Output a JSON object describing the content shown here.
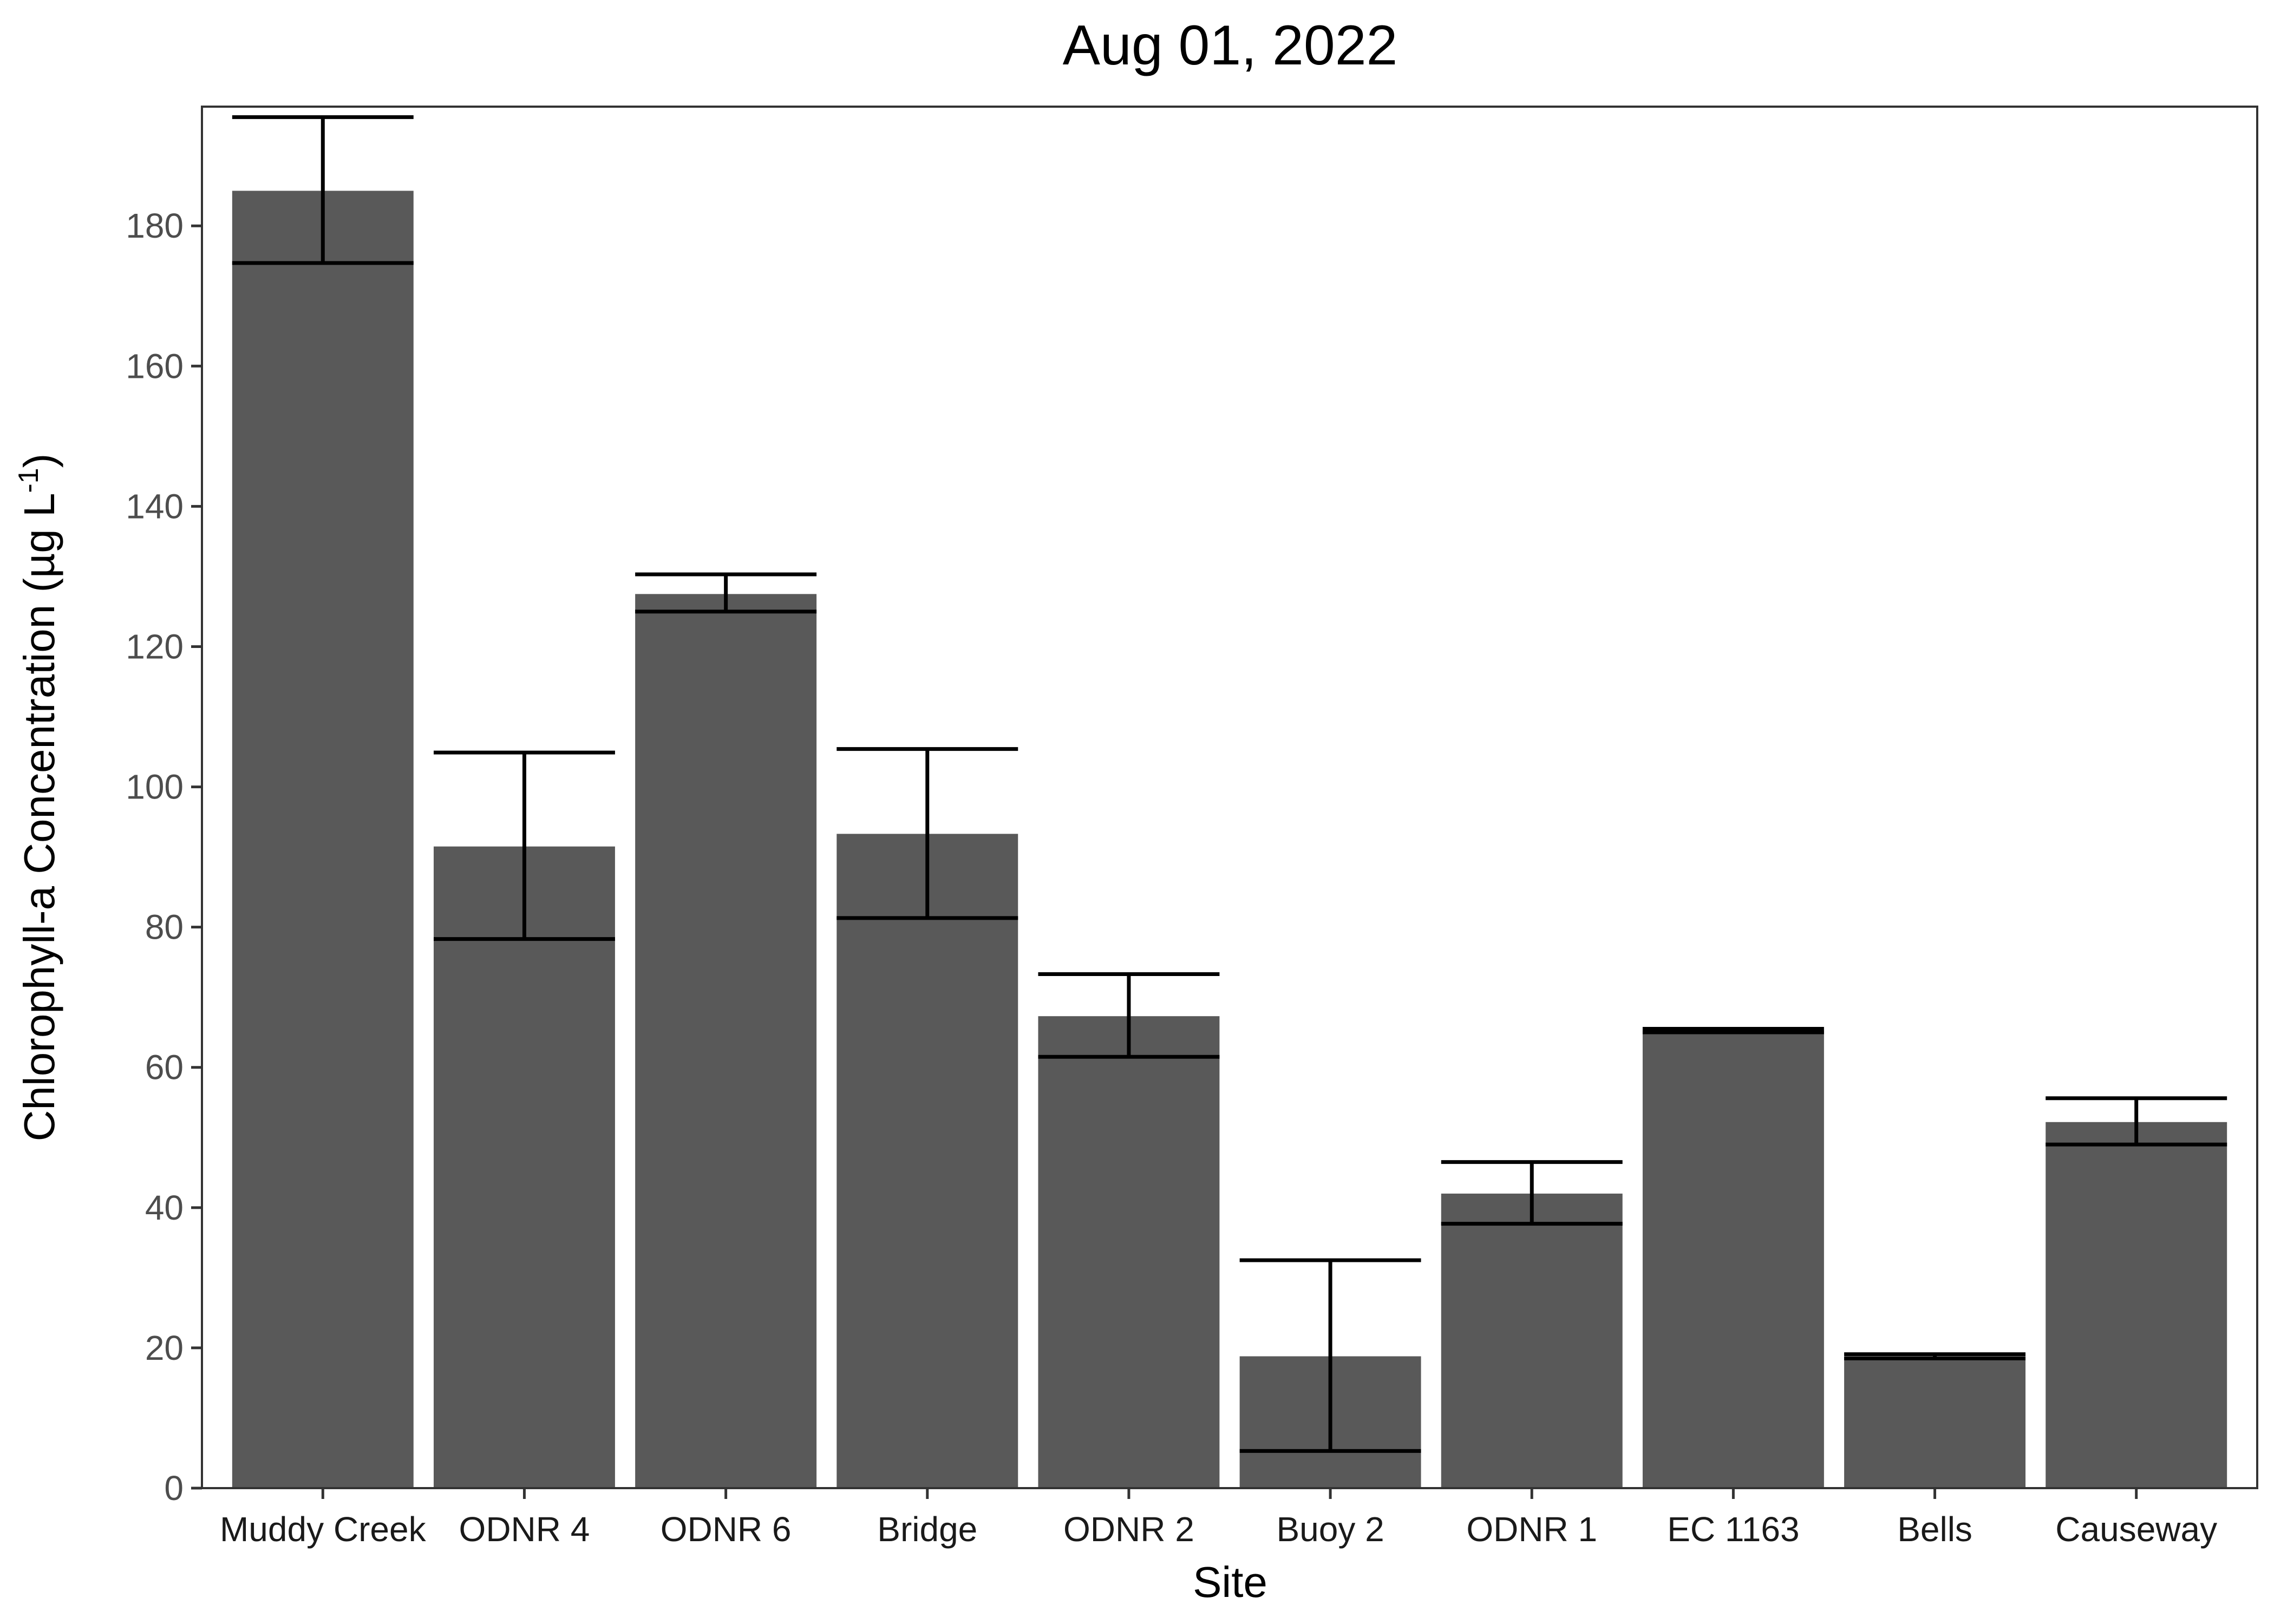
{
  "chart_data": {
    "type": "bar",
    "title": "Aug 01, 2022",
    "xlabel": "Site",
    "ylabel_main": "Chlorophyll-a Concentration (µg L",
    "ylabel_sup": "-1",
    "ylabel_close": ")",
    "ylim": [
      0,
      197
    ],
    "yticks": [
      0,
      20,
      40,
      60,
      80,
      100,
      120,
      140,
      160,
      180
    ],
    "grid": false,
    "categories": [
      "Muddy Creek",
      "ODNR 4",
      "ODNR 6",
      "Bridge",
      "ODNR 2",
      "Buoy 2",
      "ODNR 1",
      "EC 1163",
      "Bells",
      "Causeway"
    ],
    "values": [
      185.0,
      91.5,
      127.5,
      93.3,
      67.3,
      18.8,
      42.0,
      65.2,
      18.8,
      52.2
    ],
    "error_low": [
      174.7,
      78.3,
      125.0,
      81.3,
      61.5,
      5.3,
      37.7,
      65.0,
      18.5,
      49.0
    ],
    "error_high": [
      195.5,
      104.9,
      130.3,
      105.4,
      73.3,
      32.5,
      46.5,
      65.5,
      19.1,
      55.6
    ],
    "bar_color": "#595959",
    "error_color": "#000000"
  }
}
